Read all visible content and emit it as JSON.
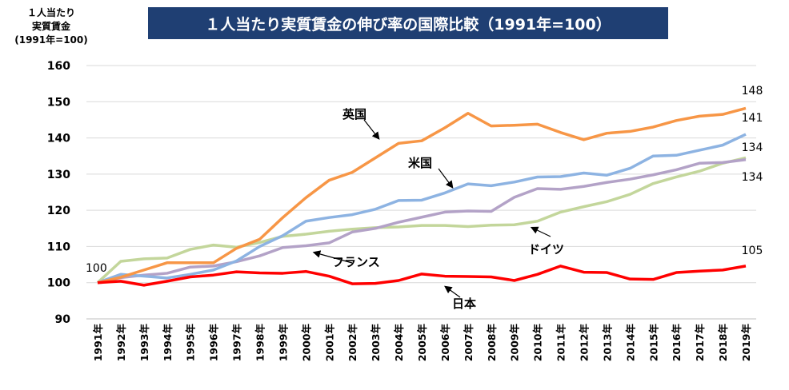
{
  "chart_data": {
    "type": "line",
    "title": "１人当たり実質賃金の伸び率の国際比較（1991年=100）",
    "ylabel": [
      "１人当たり",
      "実質賃金",
      "(1991年=100)"
    ],
    "ylim": [
      90,
      160
    ],
    "yticks": [
      90,
      100,
      110,
      120,
      130,
      140,
      150,
      160
    ],
    "grid": true,
    "x": [
      "1991年",
      "1992年",
      "1993年",
      "1994年",
      "1995年",
      "1996年",
      "1997年",
      "1998年",
      "1999年",
      "2000年",
      "2001年",
      "2002年",
      "2003年",
      "2004年",
      "2005年",
      "2006年",
      "2007年",
      "2008年",
      "2009年",
      "2010年",
      "2011年",
      "2012年",
      "2013年",
      "2014年",
      "2015年",
      "2016年",
      "2017年",
      "2018年",
      "2019年"
    ],
    "series": [
      {
        "name": "英国",
        "color": "#f79646",
        "end_label": "148",
        "values": [
          100,
          101.5,
          103.5,
          105.5,
          105.5,
          105.5,
          109.5,
          112,
          118,
          123.5,
          128.3,
          130.5,
          134.5,
          138.5,
          139.2,
          142.8,
          146.8,
          143.3,
          143.5,
          143.8,
          141.5,
          139.5,
          141.3,
          141.8,
          143,
          144.8,
          146,
          146.5,
          148.2
        ]
      },
      {
        "name": "米国",
        "color": "#8db3e2",
        "end_label": "141",
        "values": [
          100,
          102.3,
          101.8,
          101.3,
          102.3,
          103.5,
          106,
          110,
          113,
          117,
          118,
          118.8,
          120.3,
          122.7,
          122.8,
          124.8,
          127.3,
          126.8,
          127.8,
          129.2,
          129.3,
          130.3,
          129.7,
          131.6,
          135,
          135.2,
          136.6,
          138,
          141
        ]
      },
      {
        "name": "フランス",
        "color": "#b3a2c7",
        "end_label": "134",
        "values": [
          100,
          101.4,
          102.1,
          102.6,
          104.3,
          104.6,
          105.8,
          107.4,
          109.7,
          110.2,
          111,
          114,
          115,
          116.7,
          118.1,
          119.5,
          119.8,
          119.7,
          123.6,
          126,
          125.8,
          126.6,
          127.7,
          128.6,
          129.8,
          131.2,
          133,
          133.2,
          134
        ]
      },
      {
        "name": "ドイツ",
        "color": "#c3d69b",
        "end_label": "134",
        "values": [
          100,
          105.9,
          106.6,
          106.8,
          109.2,
          110.4,
          109.8,
          111.1,
          112.8,
          113.4,
          114.2,
          114.8,
          115.2,
          115.4,
          115.8,
          115.8,
          115.5,
          115.9,
          116,
          117,
          119.5,
          121,
          122.4,
          124.4,
          127.4,
          129.2,
          130.8,
          133,
          134.5
        ]
      },
      {
        "name": "日本",
        "color": "#ff0000",
        "end_label": "105",
        "values": [
          100,
          100.4,
          99.3,
          100.4,
          101.6,
          102.1,
          103,
          102.7,
          102.6,
          103.1,
          101.8,
          99.7,
          99.8,
          100.6,
          102.4,
          101.8,
          101.7,
          101.6,
          100.6,
          102.3,
          104.6,
          102.9,
          102.8,
          101,
          100.9,
          102.8,
          103.2,
          103.5,
          104.6
        ]
      }
    ],
    "start_label": "100"
  }
}
